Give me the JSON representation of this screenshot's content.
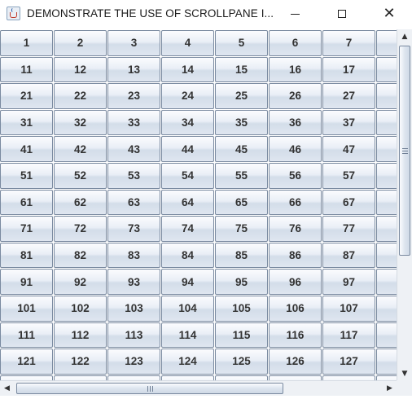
{
  "window": {
    "title": "DEMONSTRATE THE USE OF SCROLLPANE I...",
    "icon": "java-cup-icon",
    "controls": {
      "minimize_icon": "minimize-icon",
      "maximize_icon": "maximize-icon",
      "close_icon": "close-icon",
      "close_glyph": "✕"
    }
  },
  "grid": {
    "visible_rows": [
      [
        "1",
        "2",
        "3",
        "4",
        "5",
        "6",
        "7",
        ""
      ],
      [
        "11",
        "12",
        "13",
        "14",
        "15",
        "16",
        "17",
        ""
      ],
      [
        "21",
        "22",
        "23",
        "24",
        "25",
        "26",
        "27",
        ""
      ],
      [
        "31",
        "32",
        "33",
        "34",
        "35",
        "36",
        "37",
        ""
      ],
      [
        "41",
        "42",
        "43",
        "44",
        "45",
        "46",
        "47",
        ""
      ],
      [
        "51",
        "52",
        "53",
        "54",
        "55",
        "56",
        "57",
        ""
      ],
      [
        "61",
        "62",
        "63",
        "64",
        "65",
        "66",
        "67",
        ""
      ],
      [
        "71",
        "72",
        "73",
        "74",
        "75",
        "76",
        "77",
        ""
      ],
      [
        "81",
        "82",
        "83",
        "84",
        "85",
        "86",
        "87",
        ""
      ],
      [
        "91",
        "92",
        "93",
        "94",
        "95",
        "96",
        "97",
        ""
      ],
      [
        "101",
        "102",
        "103",
        "104",
        "105",
        "106",
        "107",
        ""
      ],
      [
        "111",
        "112",
        "113",
        "114",
        "115",
        "116",
        "117",
        ""
      ],
      [
        "121",
        "122",
        "123",
        "124",
        "125",
        "126",
        "127",
        ""
      ],
      [
        "",
        "",
        "",
        "",
        "",
        "",
        "",
        ""
      ]
    ]
  },
  "scrollbars": {
    "vertical": {
      "up_glyph": "▲",
      "down_glyph": "▼",
      "position_fraction": 0.0,
      "visible_fraction": 0.62
    },
    "horizontal": {
      "left_glyph": "◀",
      "right_glyph": "▶",
      "position_fraction": 0.0,
      "visible_fraction": 0.73
    }
  }
}
